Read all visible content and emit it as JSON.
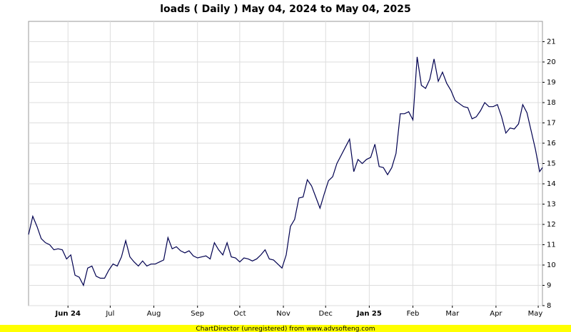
{
  "chart_data": {
    "type": "line",
    "title": "loads ( Daily ) May 04, 2024 to May 04, 2025",
    "footer": "ChartDirector (unregistered) from www.advsofteng.com",
    "x": [
      "2024-05-04",
      "2024-05-07",
      "2024-05-10",
      "2024-05-13",
      "2024-05-16",
      "2024-05-19",
      "2024-05-22",
      "2024-05-25",
      "2024-05-28",
      "2024-05-31",
      "2024-06-03",
      "2024-06-06",
      "2024-06-09",
      "2024-06-12",
      "2024-06-15",
      "2024-06-18",
      "2024-06-21",
      "2024-06-24",
      "2024-06-27",
      "2024-06-30",
      "2024-07-03",
      "2024-07-06",
      "2024-07-09",
      "2024-07-12",
      "2024-07-15",
      "2024-07-18",
      "2024-07-21",
      "2024-07-24",
      "2024-07-27",
      "2024-07-30",
      "2024-08-02",
      "2024-08-05",
      "2024-08-08",
      "2024-08-11",
      "2024-08-14",
      "2024-08-17",
      "2024-08-20",
      "2024-08-23",
      "2024-08-26",
      "2024-08-29",
      "2024-09-01",
      "2024-09-04",
      "2024-09-07",
      "2024-09-10",
      "2024-09-13",
      "2024-09-16",
      "2024-09-19",
      "2024-09-22",
      "2024-09-25",
      "2024-09-28",
      "2024-10-01",
      "2024-10-04",
      "2024-10-07",
      "2024-10-10",
      "2024-10-13",
      "2024-10-16",
      "2024-10-19",
      "2024-10-22",
      "2024-10-25",
      "2024-10-28",
      "2024-10-31",
      "2024-11-03",
      "2024-11-06",
      "2024-11-09",
      "2024-11-12",
      "2024-11-15",
      "2024-11-18",
      "2024-11-21",
      "2024-11-24",
      "2024-11-27",
      "2024-11-30",
      "2024-12-03",
      "2024-12-06",
      "2024-12-09",
      "2024-12-12",
      "2024-12-15",
      "2024-12-18",
      "2024-12-21",
      "2024-12-24",
      "2024-12-27",
      "2024-12-30",
      "2025-01-02",
      "2025-01-05",
      "2025-01-08",
      "2025-01-11",
      "2025-01-14",
      "2025-01-17",
      "2025-01-20",
      "2025-01-23",
      "2025-01-26",
      "2025-01-29",
      "2025-02-01",
      "2025-02-04",
      "2025-02-07",
      "2025-02-10",
      "2025-02-13",
      "2025-02-16",
      "2025-02-19",
      "2025-02-22",
      "2025-02-25",
      "2025-02-28",
      "2025-03-03",
      "2025-03-06",
      "2025-03-09",
      "2025-03-12",
      "2025-03-15",
      "2025-03-18",
      "2025-03-21",
      "2025-03-24",
      "2025-03-27",
      "2025-03-30",
      "2025-04-02",
      "2025-04-05",
      "2025-04-08",
      "2025-04-11",
      "2025-04-14",
      "2025-04-17",
      "2025-04-20",
      "2025-04-23",
      "2025-04-26",
      "2025-04-29",
      "2025-05-02",
      "2025-05-04"
    ],
    "series": [
      {
        "name": "loads",
        "color": "#000050",
        "values": [
          11.5,
          12.4,
          11.9,
          11.3,
          11.1,
          11.0,
          10.75,
          10.8,
          10.75,
          10.3,
          10.5,
          9.5,
          9.4,
          9.0,
          9.85,
          9.95,
          9.45,
          9.35,
          9.35,
          9.75,
          10.05,
          9.95,
          10.4,
          11.2,
          10.4,
          10.15,
          9.95,
          10.2,
          9.95,
          10.05,
          10.05,
          10.15,
          10.25,
          11.35,
          10.8,
          10.9,
          10.7,
          10.6,
          10.7,
          10.45,
          10.35,
          10.4,
          10.45,
          10.3,
          11.1,
          10.75,
          10.5,
          11.1,
          10.4,
          10.35,
          10.15,
          10.35,
          10.3,
          10.2,
          10.3,
          10.5,
          10.75,
          10.3,
          10.25,
          10.05,
          9.85,
          10.5,
          11.9,
          12.25,
          13.3,
          13.35,
          14.2,
          13.9,
          13.35,
          12.8,
          13.5,
          14.15,
          14.35,
          15.0,
          15.4,
          15.8,
          16.2,
          14.6,
          15.2,
          15.0,
          15.2,
          15.3,
          15.95,
          14.85,
          14.8,
          14.45,
          14.8,
          15.5,
          17.45,
          17.45,
          17.55,
          17.15,
          20.25,
          18.85,
          18.7,
          19.15,
          20.15,
          19.05,
          19.5,
          18.95,
          18.6,
          18.1,
          17.95,
          17.8,
          17.75,
          17.2,
          17.3,
          17.6,
          18.0,
          17.8,
          17.8,
          17.9,
          17.3,
          16.5,
          16.75,
          16.7,
          16.95,
          17.9,
          17.5,
          16.6,
          15.7,
          14.6,
          14.8
        ]
      }
    ],
    "xlim": [
      "2024-05-04",
      "2025-05-04"
    ],
    "xticks": [
      {
        "value": "2024-06-01",
        "label": "Jun 24"
      },
      {
        "value": "2024-07-01",
        "label": "Jul"
      },
      {
        "value": "2024-08-01",
        "label": "Aug"
      },
      {
        "value": "2024-09-01",
        "label": "Sep"
      },
      {
        "value": "2024-10-01",
        "label": "Oct"
      },
      {
        "value": "2024-11-01",
        "label": "Nov"
      },
      {
        "value": "2024-12-01",
        "label": "Dec"
      },
      {
        "value": "2025-01-01",
        "label": "Jan 25"
      },
      {
        "value": "2025-02-01",
        "label": "Feb"
      },
      {
        "value": "2025-03-01",
        "label": "Mar"
      },
      {
        "value": "2025-04-01",
        "label": "Apr"
      },
      {
        "value": "2025-05-01",
        "label": "May"
      }
    ],
    "ylim": [
      8,
      22
    ],
    "yticks": [
      8,
      9,
      10,
      11,
      12,
      13,
      14,
      15,
      16,
      17,
      18,
      19,
      20,
      21
    ],
    "grid": true
  }
}
